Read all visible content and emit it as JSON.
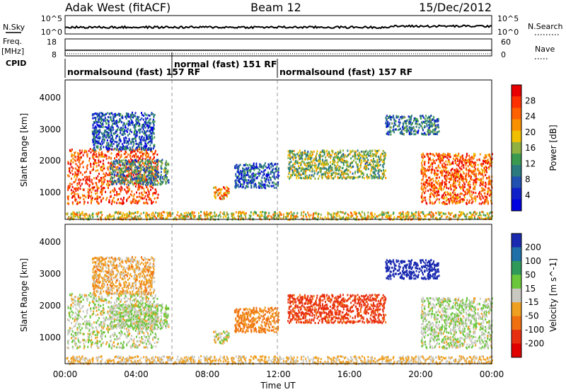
{
  "header": {
    "station": "Adak West (fitACF)",
    "beam": "Beam 12",
    "date": "15/Dec/2012"
  },
  "top_panels": {
    "noise": {
      "left_label": "N.Sky",
      "right_label": "N.Search",
      "left_ticks": [
        "10^5",
        "10^0"
      ],
      "right_ticks": [
        "10^5",
        "10^0"
      ]
    },
    "freq": {
      "left_label_1": "Freq.",
      "left_label_2": "[MHz]",
      "right_label": "Nave",
      "left_ticks": [
        "18",
        "8"
      ],
      "right_ticks": [
        "60",
        "0"
      ]
    },
    "cpid": {
      "label": "CPID",
      "segments": [
        {
          "label": "normalsound (fast) 157 RF",
          "start_h": 0,
          "end_h": 6
        },
        {
          "label": "normal (fast) 151 RF",
          "start_h": 6,
          "end_h": 12
        },
        {
          "label": "normalsound (fast) 157 RF",
          "start_h": 12,
          "end_h": 24
        }
      ]
    }
  },
  "colorbars": {
    "power": {
      "label": "Power [dB]",
      "ticks": [
        "28",
        "24",
        "20",
        "16",
        "12",
        "8",
        "4"
      ],
      "colors": [
        "#e80000",
        "#ff3000",
        "#ff6000",
        "#f89000",
        "#f0c000",
        "#90b040",
        "#3a9a50",
        "#2a7a80",
        "#2050b0",
        "#1020c8",
        "#0000e0"
      ]
    },
    "velocity": {
      "label": "Velocity [m s^-1]",
      "ticks": [
        "200",
        "100",
        "50",
        "15",
        "-15",
        "-50",
        "-100",
        "-200"
      ],
      "colors": [
        "#1a2ab0",
        "#1f70a8",
        "#2f9a5a",
        "#6ac73a",
        "#c8c8c0",
        "#f0a020",
        "#f07010",
        "#e83010",
        "#e00000"
      ]
    }
  },
  "chart_data": {
    "type": "heatmap",
    "xlabel": "Time UT",
    "ylabel": "Slant Range [km]",
    "x_ticks": [
      "00:00",
      "04:00",
      "08:00",
      "12:00",
      "16:00",
      "20:00",
      "00:00"
    ],
    "y_ticks": [
      "1000",
      "2000",
      "3000",
      "4000"
    ],
    "xlim_hours": [
      0,
      24
    ],
    "ylim_km": [
      180,
      4600
    ],
    "mode_change_hours": [
      6,
      12
    ],
    "echo_regions": [
      {
        "name": "morning-strong",
        "t0": 0.1,
        "t1": 5.2,
        "r0": 700,
        "r1": 2450,
        "power_db": 26,
        "velocity": 5
      },
      {
        "name": "morning-upper",
        "t0": 2.5,
        "t1": 5.8,
        "r0": 1300,
        "r1": 2100,
        "power_db": 10,
        "velocity": 10
      },
      {
        "name": "morning-sparse",
        "t0": 1.5,
        "t1": 5.0,
        "r0": 2400,
        "r1": 3600,
        "power_db": 6,
        "velocity": -30
      },
      {
        "name": "blob-0845",
        "t0": 8.3,
        "t1": 9.2,
        "r0": 850,
        "r1": 1250,
        "power_db": 22,
        "velocity": 0
      },
      {
        "name": "arc-1000",
        "t0": 9.5,
        "t1": 12.0,
        "r0": 1200,
        "r1": 2000,
        "power_db": 6,
        "velocity": -60
      },
      {
        "name": "afternoon-patch",
        "t0": 12.5,
        "t1": 18.0,
        "r0": 1500,
        "r1": 2400,
        "power_db": 14,
        "velocity": -120
      },
      {
        "name": "evening-strong",
        "t0": 20.0,
        "t1": 24.0,
        "r0": 700,
        "r1": 2300,
        "power_db": 25,
        "velocity": 10
      },
      {
        "name": "evening-high",
        "t0": 18.0,
        "t1": 21.0,
        "r0": 2900,
        "r1": 3500,
        "power_db": 8,
        "velocity": 250
      },
      {
        "name": "ground-scatter-band",
        "t0": 0.0,
        "t1": 24.0,
        "r0": 200,
        "r1": 450,
        "power_db": 18,
        "velocity": -20
      }
    ]
  }
}
